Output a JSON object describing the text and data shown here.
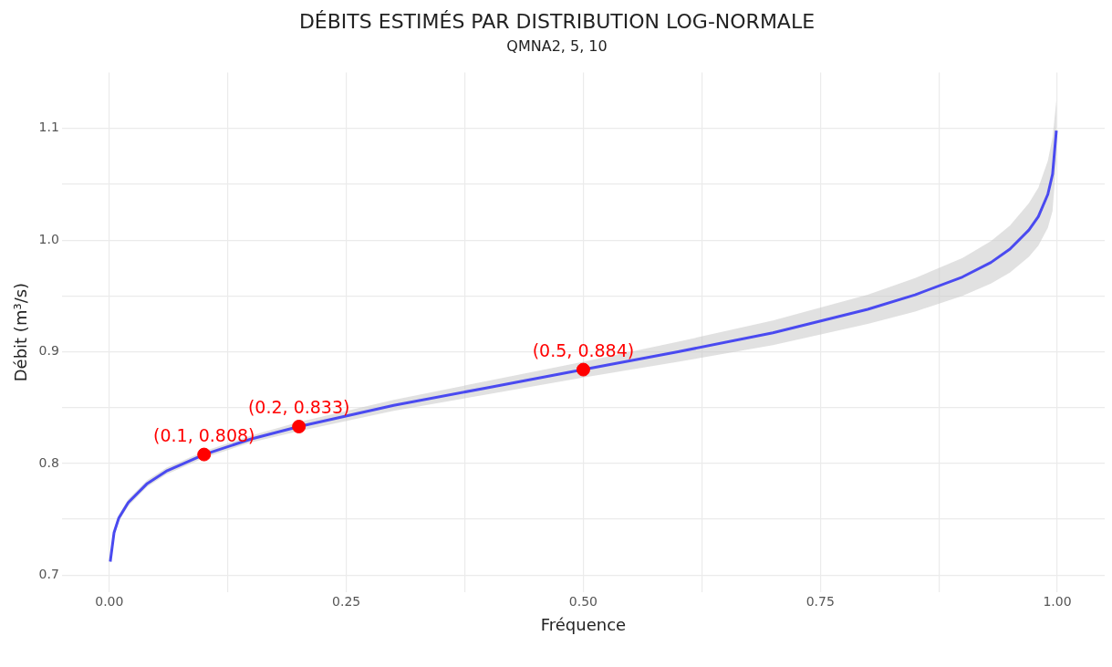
{
  "chart_data": {
    "type": "line",
    "title": "DÉBITS ESTIMÉS PAR DISTRIBUTION LOG-NORMALE",
    "subtitle": "QMNA2, 5, 10",
    "xlabel": "Fréquence",
    "ylabel": "Débit (m³/s)",
    "xlim": [
      -0.05,
      1.05
    ],
    "ylim": [
      0.685,
      1.15
    ],
    "xticks": [
      {
        "value": 0,
        "label": "0.00"
      },
      {
        "value": 0.125,
        "label": null
      },
      {
        "value": 0.25,
        "label": "0.25"
      },
      {
        "value": 0.375,
        "label": null
      },
      {
        "value": 0.5,
        "label": "0.50"
      },
      {
        "value": 0.625,
        "label": null
      },
      {
        "value": 0.75,
        "label": "0.75"
      },
      {
        "value": 0.875,
        "label": null
      },
      {
        "value": 1,
        "label": "1.00"
      }
    ],
    "yticks": [
      0.7,
      {
        "value": 0.75,
        "label": null
      },
      0.8,
      {
        "value": 0.85,
        "label": null
      },
      0.9,
      {
        "value": 0.95,
        "label": null
      },
      {
        "value": 1,
        "label": "1.0"
      },
      {
        "value": 1.05,
        "label": null
      },
      1.1
    ],
    "grid": true,
    "legend": false,
    "marker": "none",
    "line_style": "solid",
    "series": [
      {
        "color": "#4a4af0",
        "x": [
          0.001,
          0.005,
          0.01,
          0.02,
          0.04,
          0.06,
          0.1,
          0.15,
          0.2,
          0.3,
          0.4,
          0.5,
          0.6,
          0.7,
          0.8,
          0.85,
          0.9,
          0.93,
          0.95,
          0.97,
          0.98,
          0.99,
          0.995,
          0.999
        ],
        "values": [
          0.712,
          0.738,
          0.751,
          0.765,
          0.782,
          0.793,
          0.808,
          0.822,
          0.833,
          0.852,
          0.868,
          0.884,
          0.9,
          0.917,
          0.938,
          0.951,
          0.967,
          0.98,
          0.992,
          1.009,
          1.021,
          1.041,
          1.059,
          1.098
        ],
        "lower": [
          0.71,
          0.735,
          0.748,
          0.762,
          0.779,
          0.79,
          0.805,
          0.819,
          0.829,
          0.847,
          0.862,
          0.877,
          0.891,
          0.906,
          0.925,
          0.936,
          0.95,
          0.961,
          0.971,
          0.985,
          0.995,
          1.011,
          1.026,
          1.071
        ],
        "upper": [
          0.714,
          0.741,
          0.754,
          0.768,
          0.785,
          0.796,
          0.811,
          0.825,
          0.837,
          0.857,
          0.874,
          0.891,
          0.909,
          0.928,
          0.951,
          0.966,
          0.984,
          0.999,
          1.013,
          1.033,
          1.047,
          1.071,
          1.092,
          1.125
        ]
      },
      {
        "type": "scatter",
        "color": "#ff0000",
        "marker": "circle",
        "x": [
          0.1,
          0.2,
          0.5
        ],
        "values": [
          0.808,
          0.833,
          0.884
        ],
        "value_labels": [
          "(0.1, 0.808)",
          "(0.2, 0.833)",
          "(0.5, 0.884)"
        ]
      }
    ]
  }
}
